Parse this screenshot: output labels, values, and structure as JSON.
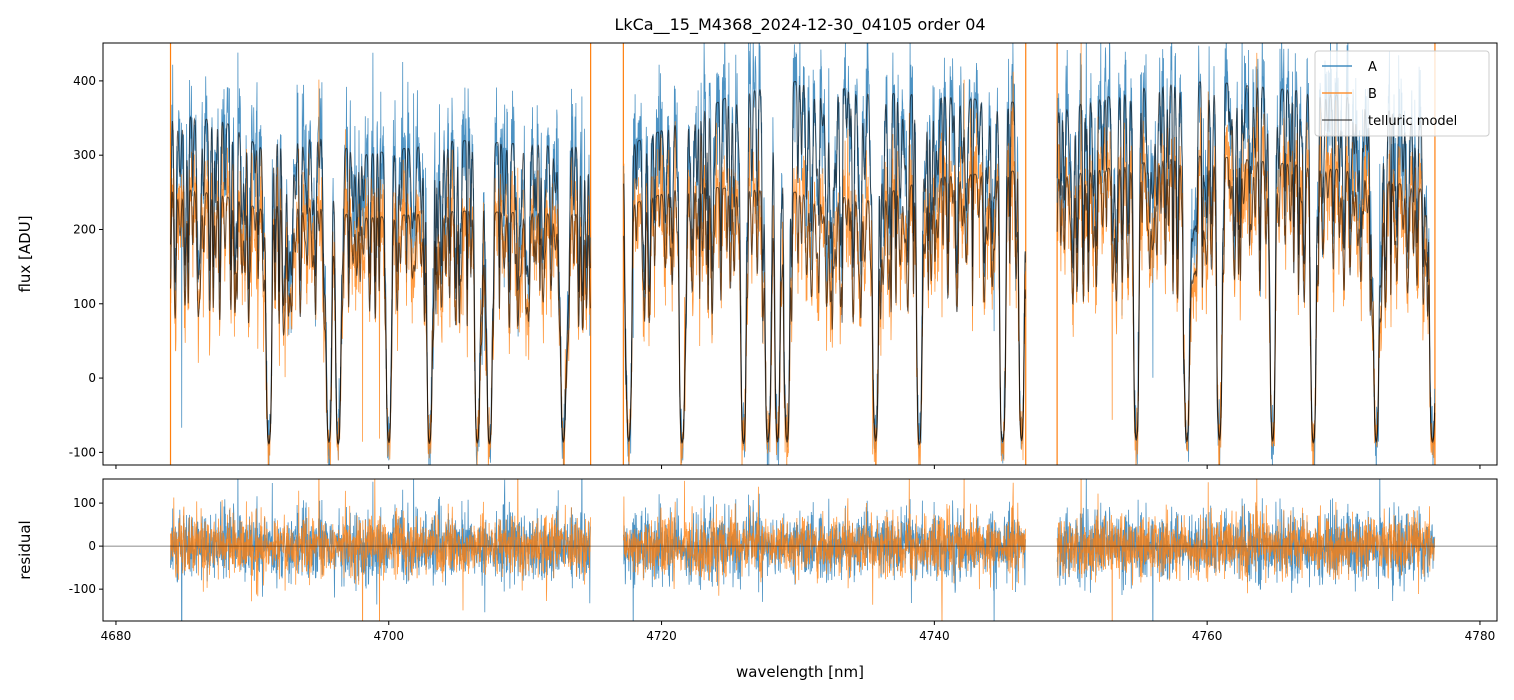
{
  "chart_data": {
    "type": "line",
    "title": "LkCa__15_M4368_2024-12-30_04105  order 04",
    "xlabel": "wavelength [nm]",
    "panels": [
      {
        "name": "flux",
        "ylabel": "flux [ADU]",
        "ylim": [
          -117,
          451
        ],
        "yticks": [
          -100,
          0,
          100,
          200,
          300,
          400
        ]
      },
      {
        "name": "residual",
        "ylabel": "residual",
        "ylim": [
          -174,
          156
        ],
        "yticks": [
          -100,
          0,
          100
        ]
      }
    ],
    "xlim": [
      4679.05,
      4781.25
    ],
    "xticks": [
      4680,
      4700,
      4720,
      4740,
      4760,
      4780
    ],
    "legend": {
      "position": "top-right",
      "entries": [
        "A",
        "B",
        "telluric model"
      ]
    },
    "colors": {
      "A": "#1f77b4",
      "B": "#ff7f0e",
      "telluric model": "#000000"
    },
    "segments": [
      [
        4684.0,
        4714.8
      ],
      [
        4717.2,
        4746.7
      ],
      [
        4749.0,
        4776.7
      ]
    ],
    "continuum_A": {
      "x": [
        4684,
        4688,
        4691,
        4692,
        4695,
        4698,
        4705,
        4714.8,
        4717.2,
        4722,
        4725,
        4730,
        4735,
        4740,
        4746.7,
        4749,
        4755,
        4760,
        4765,
        4770,
        4776.7
      ],
      "y": [
        355,
        345,
        305,
        320,
        325,
        300,
        320,
        310,
        310,
        350,
        380,
        400,
        385,
        380,
        370,
        360,
        390,
        400,
        390,
        380,
        340
      ]
    },
    "continuum_B": {
      "x": [
        4684,
        4688,
        4691,
        4692,
        4695,
        4698,
        4705,
        4714.8,
        4717.2,
        4722,
        4725,
        4730,
        4735,
        4740,
        4746.7,
        4749,
        4755,
        4760,
        4765,
        4770,
        4776.7
      ],
      "y": [
        258,
        245,
        225,
        235,
        230,
        215,
        225,
        220,
        230,
        260,
        255,
        250,
        240,
        270,
        280,
        270,
        290,
        300,
        290,
        280,
        250
      ]
    },
    "strong_telluric_lines_nm": [
      4691.2,
      4695.6,
      4696.3,
      4700.0,
      4703.0,
      4706.5,
      4707.4,
      4712.8,
      4717.6,
      4721.5,
      4726.0,
      4727.8,
      4728.5,
      4729.2,
      4735.7,
      4738.9,
      4745.0,
      4746.4,
      4754.8,
      4758.5,
      4760.9,
      4764.8,
      4767.8,
      4772.4,
      4776.5
    ],
    "model_floor": -95,
    "noise_sigma": {
      "A": 40,
      "B": 35
    },
    "residual_reference": 0
  }
}
